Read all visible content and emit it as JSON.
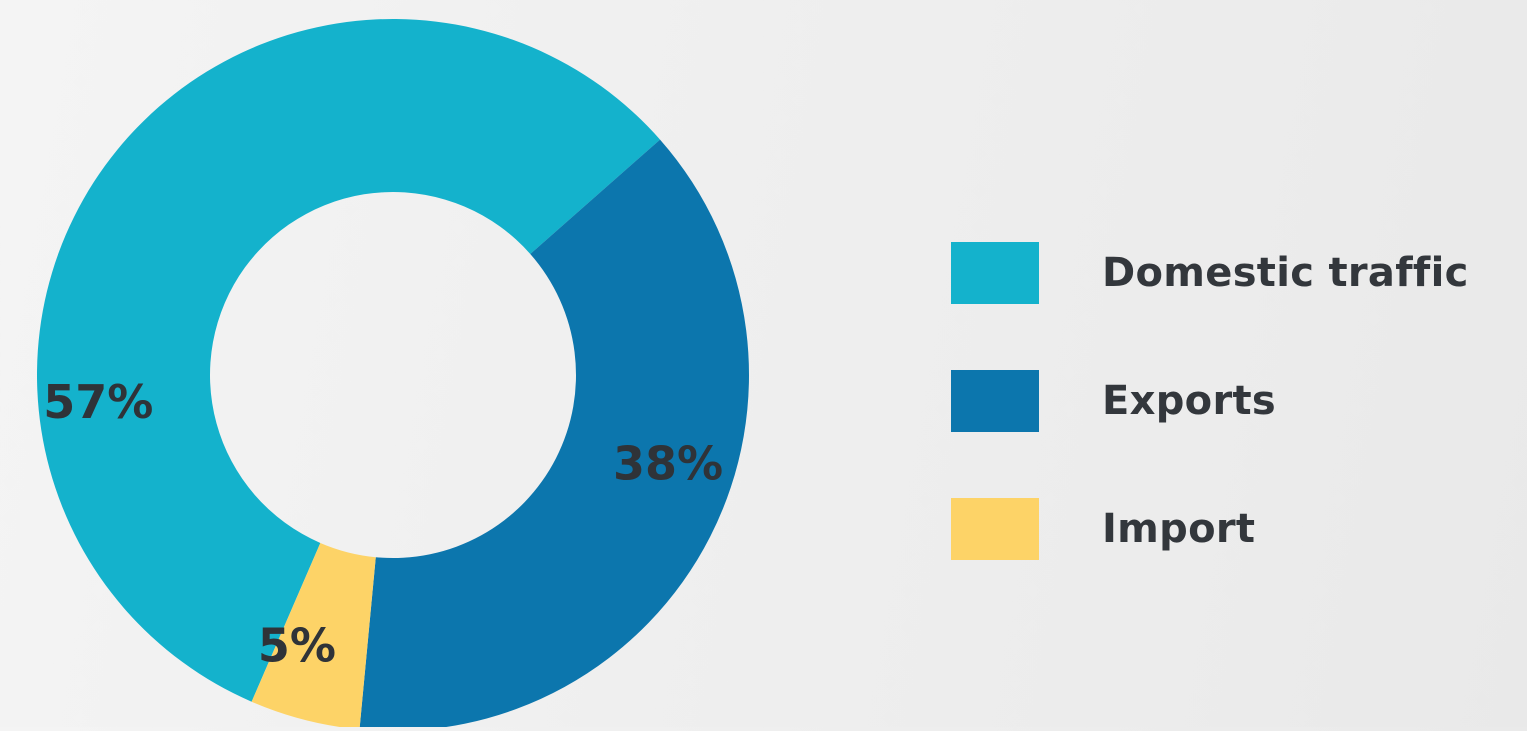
{
  "chart_data": {
    "type": "pie",
    "donut": true,
    "categories": [
      "Domestic traffic",
      "Exports",
      "Import"
    ],
    "values": [
      57,
      38,
      5
    ],
    "value_labels": [
      "57%",
      "38%",
      "5%"
    ],
    "unit": "%",
    "colors": [
      "#14b2cc",
      "#0c76ad",
      "#fdd367"
    ],
    "title": "",
    "legend_position": "right",
    "label_color": "#2f3338"
  },
  "legend": {
    "items": [
      {
        "label": "Domestic traffic",
        "color": "#14b2cc"
      },
      {
        "label": "Exports",
        "color": "#0c76ad"
      },
      {
        "label": "Import",
        "color": "#fdd367"
      }
    ]
  }
}
